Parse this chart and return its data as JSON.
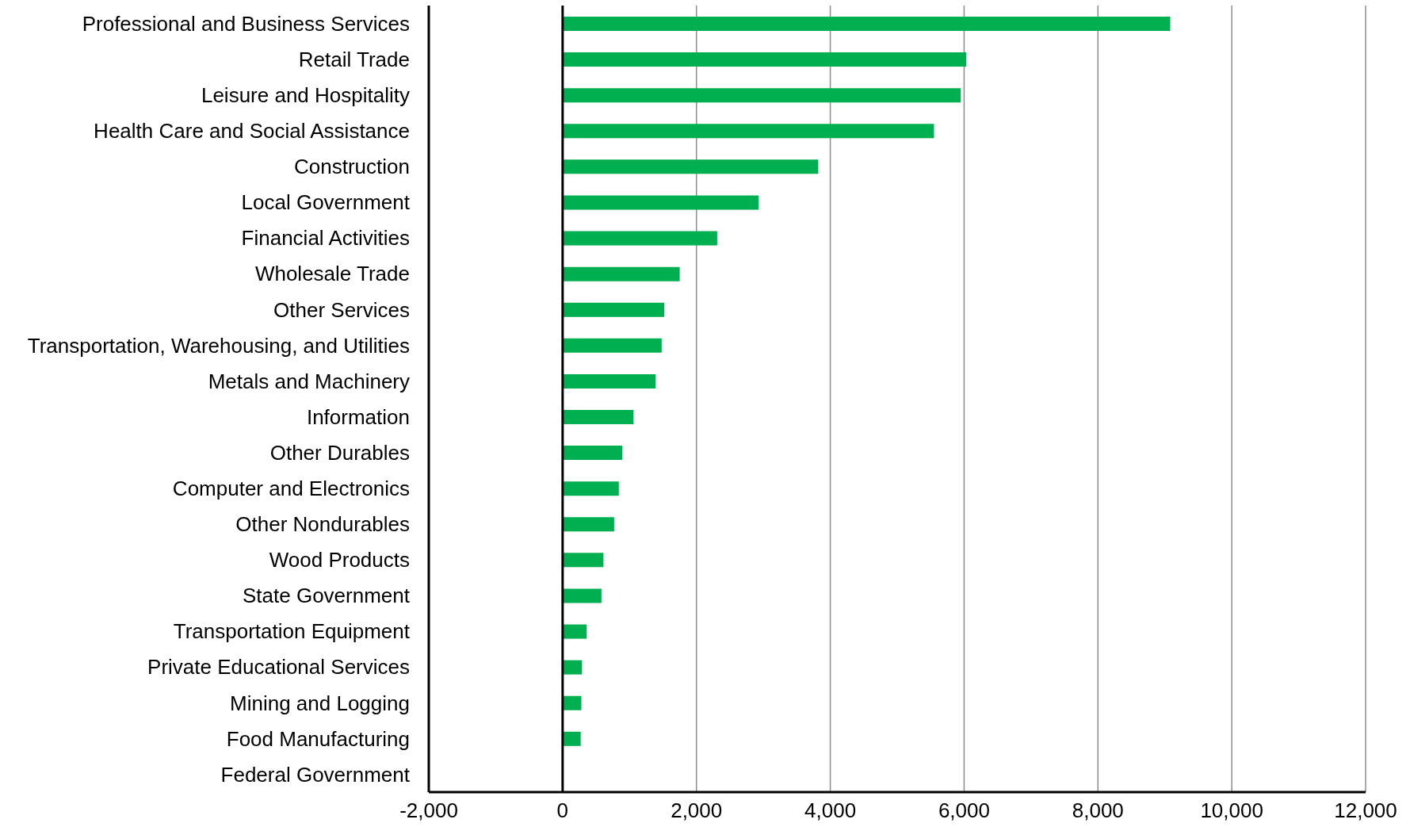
{
  "chart_data": {
    "type": "bar",
    "orientation": "horizontal",
    "categories": [
      "Professional and Business Services",
      "Retail Trade",
      "Leisure and Hospitality",
      "Health Care and Social Assistance",
      "Construction",
      "Local Government",
      "Financial Activities",
      "Wholesale Trade",
      "Other Services",
      "Transportation, Warehousing, and Utilities",
      "Metals and Machinery",
      "Information",
      "Other Durables",
      "Computer and Electronics",
      "Other Nondurables",
      "Wood Products",
      "State Government",
      "Transportation Equipment",
      "Private Educational Services",
      "Mining and Logging",
      "Food Manufacturing",
      "Federal Government"
    ],
    "values": [
      9080,
      6030,
      5950,
      5550,
      3820,
      2930,
      2310,
      1750,
      1520,
      1480,
      1390,
      1060,
      890,
      840,
      770,
      610,
      580,
      360,
      290,
      280,
      270,
      0
    ],
    "color": "#00b050",
    "xlim": [
      -2000,
      12000
    ],
    "xticks": [
      {
        "value": -2000,
        "label": "-2,000"
      },
      0,
      {
        "value": 2000,
        "label": "2,000"
      },
      {
        "value": 4000,
        "label": "4,000"
      },
      {
        "value": 6000,
        "label": "6,000"
      },
      {
        "value": 8000,
        "label": "8,000"
      },
      {
        "value": 10000,
        "label": "10,000"
      },
      {
        "value": 12000,
        "label": "12,000"
      }
    ],
    "grid": "x"
  }
}
